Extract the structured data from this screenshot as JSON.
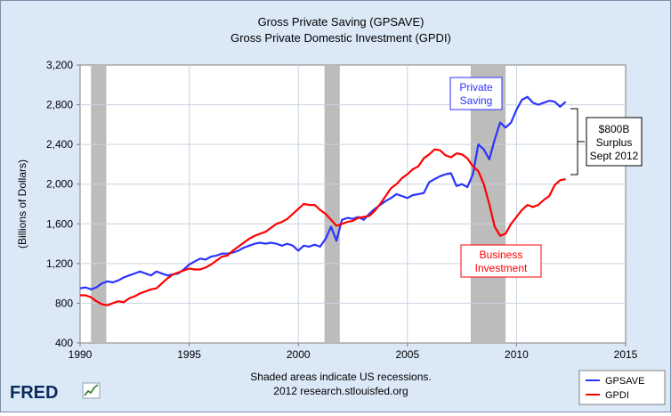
{
  "chart_data": {
    "type": "line",
    "title": "Gross Private Saving (GPSAVE)",
    "subtitle": "Gross Private Domestic Investment (GPDI)",
    "ylabel": "(Billions of Dollars)",
    "xlabel": "",
    "xlim": [
      1990,
      2015
    ],
    "ylim": [
      400,
      3200
    ],
    "x_ticks": [
      "1990",
      "1995",
      "2000",
      "2005",
      "2010",
      "2015"
    ],
    "x_tick_values": [
      1990,
      1995,
      2000,
      2005,
      2010,
      2015
    ],
    "y_ticks": [
      "400",
      "800",
      "1,200",
      "1,600",
      "2,000",
      "2,400",
      "2,800",
      "3,200"
    ],
    "y_tick_values": [
      400,
      800,
      1200,
      1600,
      2000,
      2400,
      2800,
      3200
    ],
    "grid": true,
    "legend_position": "bottom-right",
    "recessions": [
      [
        1990.5,
        1991.2
      ],
      [
        2001.2,
        2001.9
      ],
      [
        2007.9,
        2009.5
      ]
    ],
    "series": [
      {
        "name": "GPSAVE",
        "color": "#2a33ff",
        "points": [
          [
            1990.0,
            950
          ],
          [
            1990.25,
            960
          ],
          [
            1990.5,
            940
          ],
          [
            1990.75,
            960
          ],
          [
            1991.0,
            1000
          ],
          [
            1991.25,
            1020
          ],
          [
            1991.5,
            1010
          ],
          [
            1991.75,
            1030
          ],
          [
            1992.0,
            1060
          ],
          [
            1992.25,
            1080
          ],
          [
            1992.5,
            1100
          ],
          [
            1992.75,
            1120
          ],
          [
            1993.0,
            1100
          ],
          [
            1993.25,
            1080
          ],
          [
            1993.5,
            1120
          ],
          [
            1993.75,
            1100
          ],
          [
            1994.0,
            1080
          ],
          [
            1994.25,
            1090
          ],
          [
            1994.5,
            1100
          ],
          [
            1994.75,
            1140
          ],
          [
            1995.0,
            1190
          ],
          [
            1995.25,
            1220
          ],
          [
            1995.5,
            1250
          ],
          [
            1995.75,
            1240
          ],
          [
            1996.0,
            1270
          ],
          [
            1996.25,
            1280
          ],
          [
            1996.5,
            1300
          ],
          [
            1996.75,
            1300
          ],
          [
            1997.0,
            1310
          ],
          [
            1997.25,
            1330
          ],
          [
            1997.5,
            1360
          ],
          [
            1997.75,
            1380
          ],
          [
            1998.0,
            1400
          ],
          [
            1998.25,
            1410
          ],
          [
            1998.5,
            1400
          ],
          [
            1998.75,
            1410
          ],
          [
            1999.0,
            1400
          ],
          [
            1999.25,
            1380
          ],
          [
            1999.5,
            1400
          ],
          [
            1999.75,
            1380
          ],
          [
            2000.0,
            1330
          ],
          [
            2000.25,
            1380
          ],
          [
            2000.5,
            1370
          ],
          [
            2000.75,
            1390
          ],
          [
            2001.0,
            1370
          ],
          [
            2001.25,
            1450
          ],
          [
            2001.5,
            1570
          ],
          [
            2001.75,
            1430
          ],
          [
            2002.0,
            1640
          ],
          [
            2002.25,
            1660
          ],
          [
            2002.5,
            1650
          ],
          [
            2002.75,
            1670
          ],
          [
            2003.0,
            1640
          ],
          [
            2003.25,
            1700
          ],
          [
            2003.5,
            1750
          ],
          [
            2003.75,
            1790
          ],
          [
            2004.0,
            1830
          ],
          [
            2004.25,
            1860
          ],
          [
            2004.5,
            1900
          ],
          [
            2004.75,
            1880
          ],
          [
            2005.0,
            1860
          ],
          [
            2005.25,
            1890
          ],
          [
            2005.5,
            1900
          ],
          [
            2005.75,
            1910
          ],
          [
            2006.0,
            2020
          ],
          [
            2006.25,
            2050
          ],
          [
            2006.5,
            2080
          ],
          [
            2006.75,
            2100
          ],
          [
            2007.0,
            2110
          ],
          [
            2007.25,
            1980
          ],
          [
            2007.5,
            2000
          ],
          [
            2007.75,
            1970
          ],
          [
            2008.0,
            2100
          ],
          [
            2008.25,
            2400
          ],
          [
            2008.5,
            2350
          ],
          [
            2008.75,
            2250
          ],
          [
            2009.0,
            2450
          ],
          [
            2009.25,
            2620
          ],
          [
            2009.5,
            2570
          ],
          [
            2009.75,
            2620
          ],
          [
            2010.0,
            2750
          ],
          [
            2010.25,
            2850
          ],
          [
            2010.5,
            2880
          ],
          [
            2010.75,
            2820
          ],
          [
            2011.0,
            2800
          ],
          [
            2011.25,
            2820
          ],
          [
            2011.5,
            2840
          ],
          [
            2011.75,
            2830
          ],
          [
            2012.0,
            2780
          ],
          [
            2012.25,
            2830
          ]
        ]
      },
      {
        "name": "GPDI",
        "color": "#ff0000",
        "points": [
          [
            1990.0,
            880
          ],
          [
            1990.25,
            880
          ],
          [
            1990.5,
            860
          ],
          [
            1990.75,
            820
          ],
          [
            1991.0,
            790
          ],
          [
            1991.25,
            780
          ],
          [
            1991.5,
            800
          ],
          [
            1991.75,
            820
          ],
          [
            1992.0,
            810
          ],
          [
            1992.25,
            850
          ],
          [
            1992.5,
            870
          ],
          [
            1992.75,
            900
          ],
          [
            1993.0,
            920
          ],
          [
            1993.25,
            940
          ],
          [
            1993.5,
            950
          ],
          [
            1993.75,
            1000
          ],
          [
            1994.0,
            1050
          ],
          [
            1994.25,
            1090
          ],
          [
            1994.5,
            1110
          ],
          [
            1994.75,
            1130
          ],
          [
            1995.0,
            1150
          ],
          [
            1995.25,
            1140
          ],
          [
            1995.5,
            1140
          ],
          [
            1995.75,
            1160
          ],
          [
            1996.0,
            1190
          ],
          [
            1996.25,
            1230
          ],
          [
            1996.5,
            1270
          ],
          [
            1996.75,
            1280
          ],
          [
            1997.0,
            1330
          ],
          [
            1997.25,
            1370
          ],
          [
            1997.5,
            1410
          ],
          [
            1997.75,
            1450
          ],
          [
            1998.0,
            1480
          ],
          [
            1998.25,
            1500
          ],
          [
            1998.5,
            1520
          ],
          [
            1998.75,
            1560
          ],
          [
            1999.0,
            1600
          ],
          [
            1999.25,
            1620
          ],
          [
            1999.5,
            1650
          ],
          [
            1999.75,
            1700
          ],
          [
            2000.0,
            1750
          ],
          [
            2000.25,
            1800
          ],
          [
            2000.5,
            1790
          ],
          [
            2000.75,
            1790
          ],
          [
            2001.0,
            1740
          ],
          [
            2001.25,
            1700
          ],
          [
            2001.5,
            1640
          ],
          [
            2001.75,
            1580
          ],
          [
            2002.0,
            1600
          ],
          [
            2002.25,
            1620
          ],
          [
            2002.5,
            1630
          ],
          [
            2002.75,
            1660
          ],
          [
            2003.0,
            1670
          ],
          [
            2003.25,
            1680
          ],
          [
            2003.5,
            1730
          ],
          [
            2003.75,
            1800
          ],
          [
            2004.0,
            1880
          ],
          [
            2004.25,
            1960
          ],
          [
            2004.5,
            2000
          ],
          [
            2004.75,
            2060
          ],
          [
            2005.0,
            2100
          ],
          [
            2005.25,
            2150
          ],
          [
            2005.5,
            2180
          ],
          [
            2005.75,
            2260
          ],
          [
            2006.0,
            2300
          ],
          [
            2006.25,
            2350
          ],
          [
            2006.5,
            2340
          ],
          [
            2006.75,
            2290
          ],
          [
            2007.0,
            2270
          ],
          [
            2007.25,
            2310
          ],
          [
            2007.5,
            2300
          ],
          [
            2007.75,
            2260
          ],
          [
            2008.0,
            2180
          ],
          [
            2008.25,
            2130
          ],
          [
            2008.5,
            2000
          ],
          [
            2008.75,
            1800
          ],
          [
            2009.0,
            1570
          ],
          [
            2009.25,
            1480
          ],
          [
            2009.5,
            1500
          ],
          [
            2009.75,
            1600
          ],
          [
            2010.0,
            1670
          ],
          [
            2010.25,
            1740
          ],
          [
            2010.5,
            1790
          ],
          [
            2010.75,
            1770
          ],
          [
            2011.0,
            1790
          ],
          [
            2011.25,
            1840
          ],
          [
            2011.5,
            1880
          ],
          [
            2011.75,
            1990
          ],
          [
            2012.0,
            2040
          ],
          [
            2012.25,
            2050
          ]
        ]
      }
    ],
    "annotations": [
      {
        "lines": [
          "Private",
          "Saving"
        ],
        "color": "#2a33ff"
      },
      {
        "lines": [
          "Business",
          "Investment"
        ],
        "color": "#ff0000"
      },
      {
        "lines": [
          "$800B",
          "Surplus",
          "Sept 2012"
        ],
        "color": "#000000"
      }
    ],
    "footnote": [
      "Shaded areas indicate US recessions.",
      "2012 research.stlouisfed.org"
    ]
  },
  "branding": {
    "logo": "FRED"
  },
  "colors": {
    "background": "#dbe8f6",
    "plot_background": "#ffffff",
    "recession": "#bcbcbc",
    "grid": "#c8d3e0"
  }
}
